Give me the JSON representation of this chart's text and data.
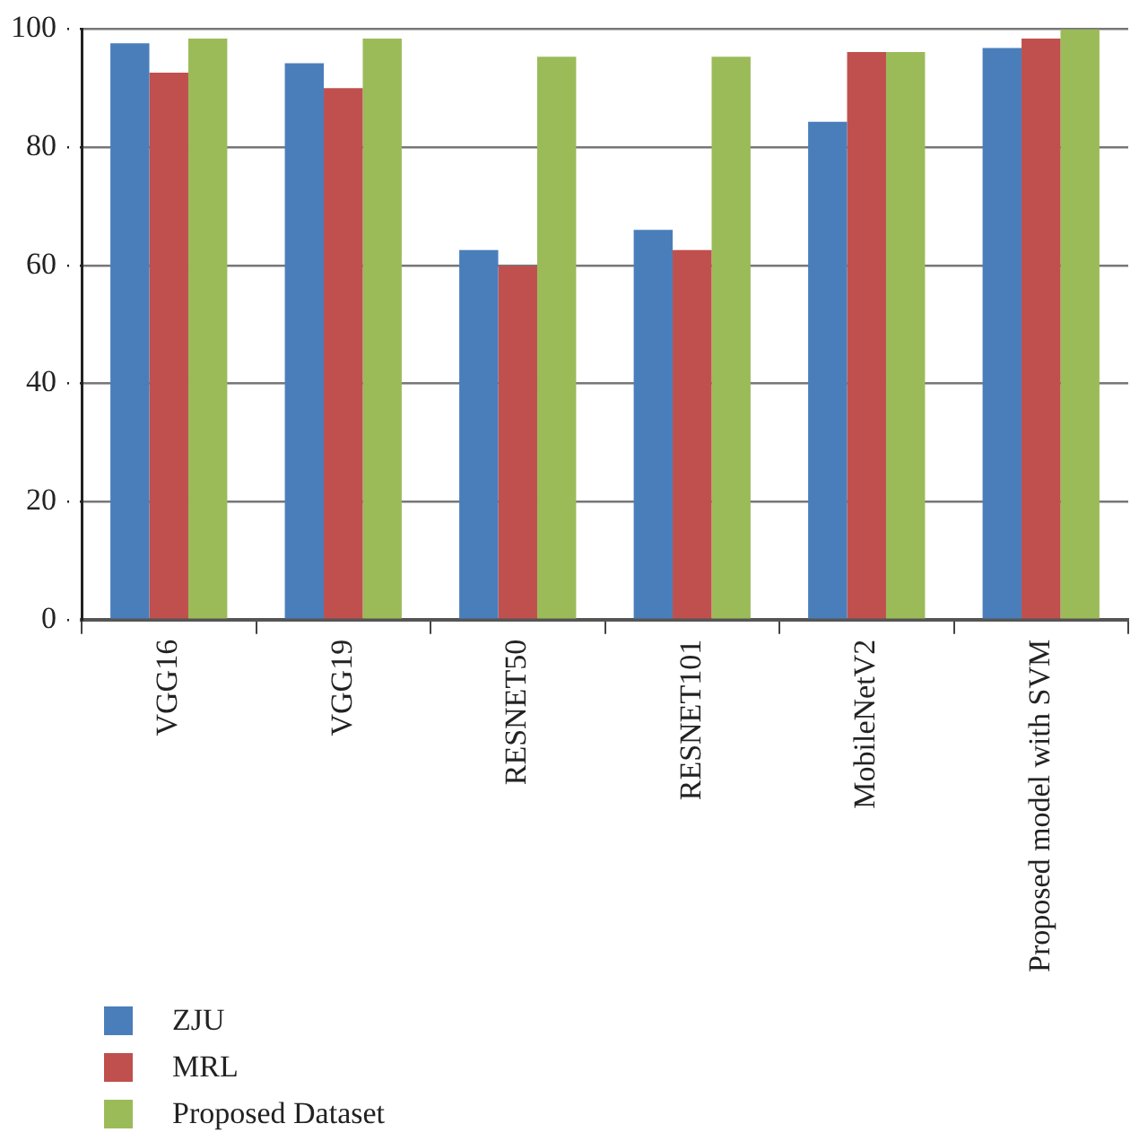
{
  "chart_data": {
    "type": "bar",
    "categories": [
      "VGG16",
      "VGG19",
      "RESNET50",
      "RESNET101",
      "MobileNetV2",
      "Proposed model with SVM"
    ],
    "series": [
      {
        "name": "ZJU",
        "color": "#4a7ebb",
        "values": [
          97.6,
          94.2,
          62.6,
          66.0,
          84.3,
          96.8
        ]
      },
      {
        "name": "MRL",
        "color": "#c0504d",
        "values": [
          92.6,
          90.0,
          59.9,
          62.6,
          96.1,
          98.4
        ]
      },
      {
        "name": "Proposed Dataset",
        "color": "#9bbb59",
        "values": [
          98.4,
          98.4,
          95.3,
          95.3,
          96.1,
          100
        ]
      }
    ],
    "ylim": [
      0,
      100
    ],
    "yticks": [
      0,
      20,
      40,
      60,
      80,
      100
    ],
    "grid": "y",
    "legend": "bottom left"
  }
}
